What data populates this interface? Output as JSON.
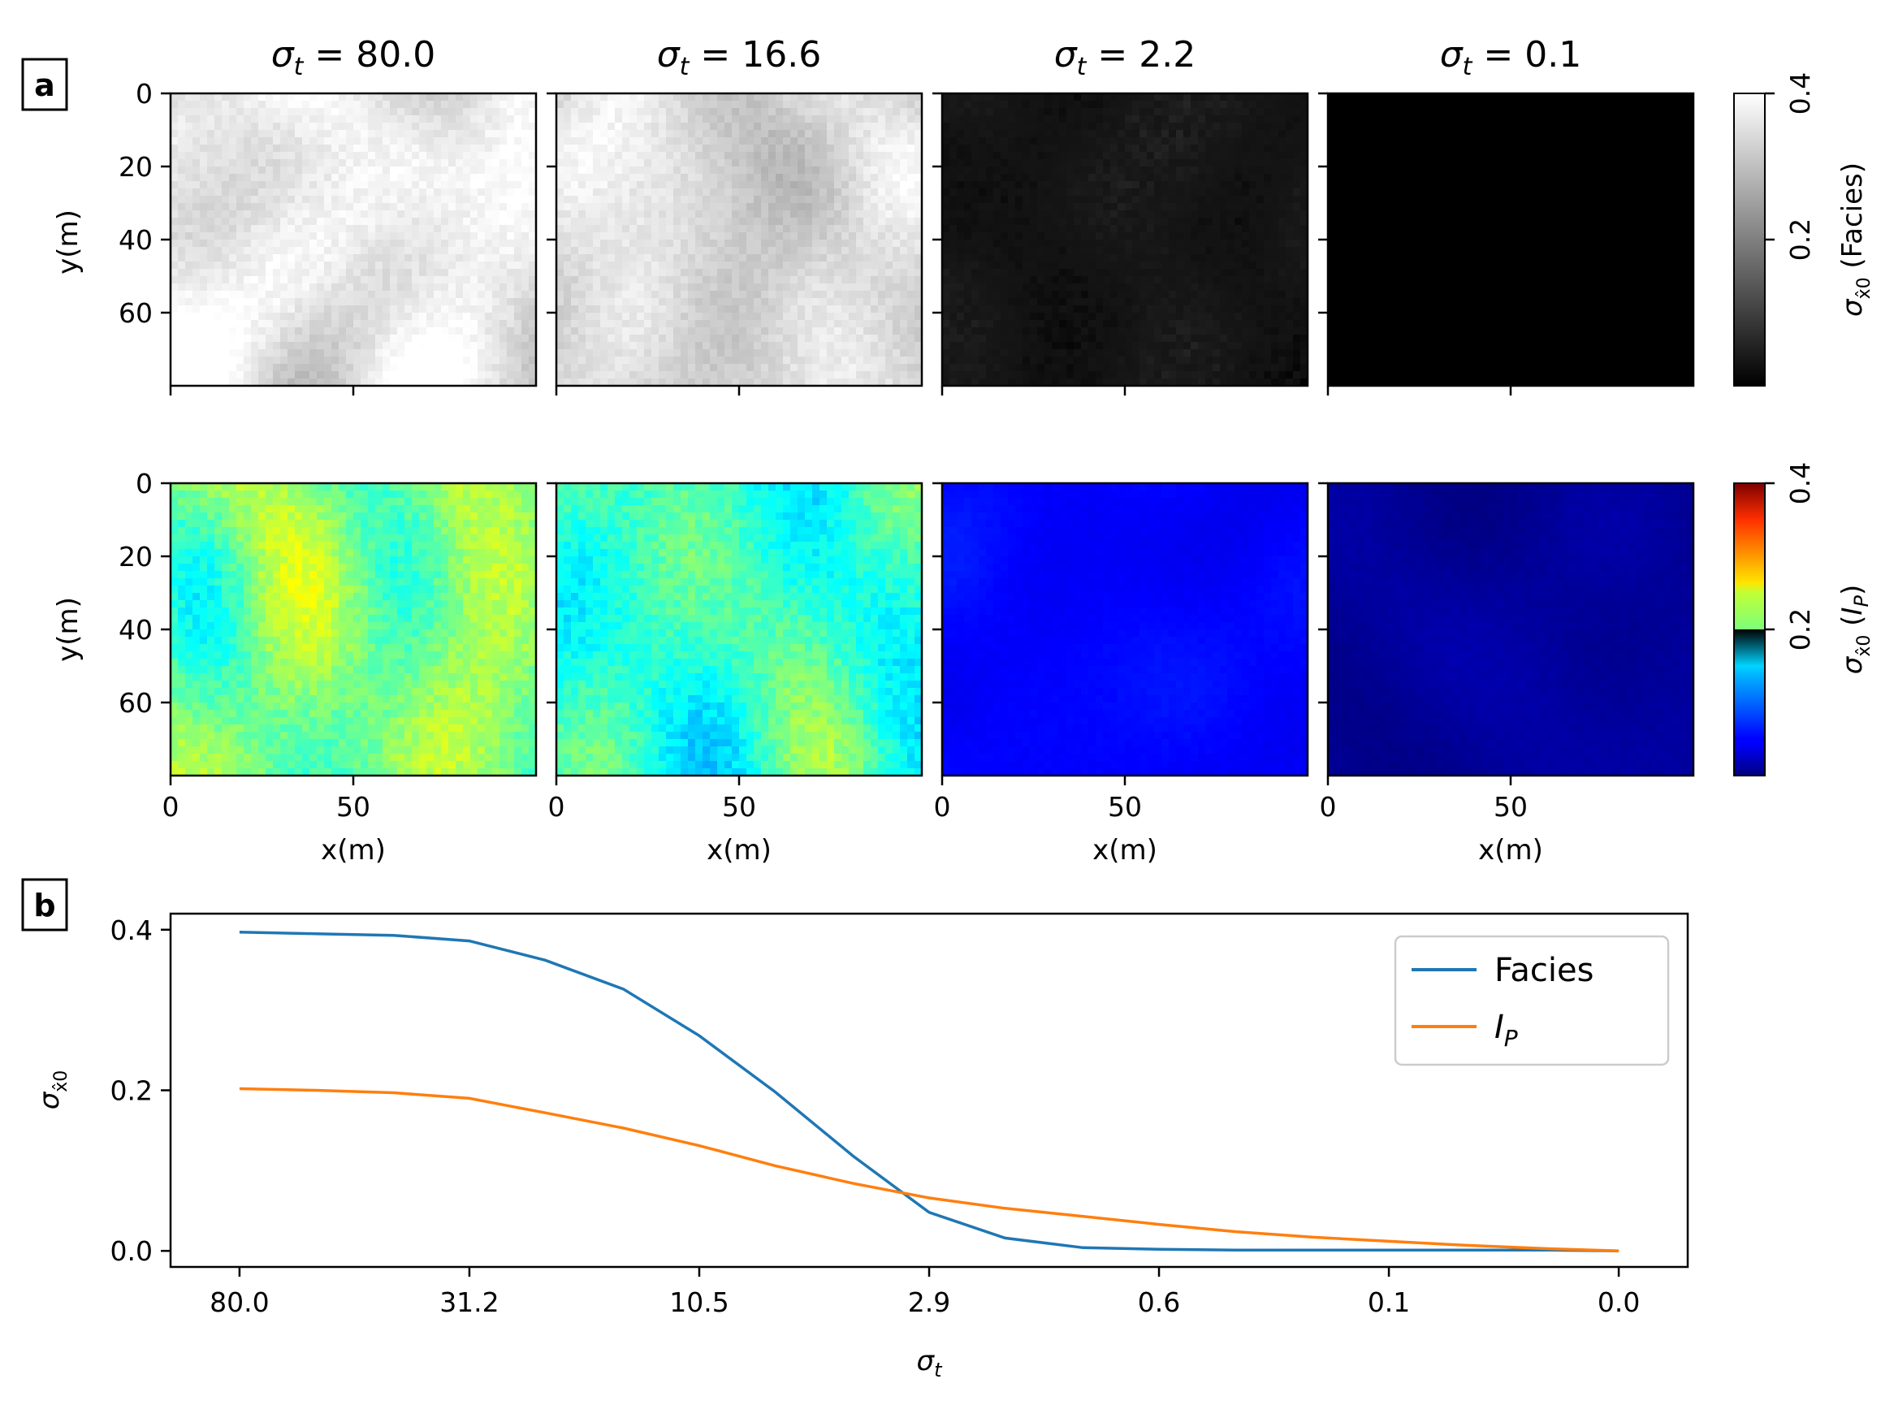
{
  "panel_labels": [
    "a",
    "b"
  ],
  "chart_data": [
    {
      "type": "heatmap",
      "name": "facies-std-maps",
      "panel": "a",
      "row": 1,
      "columns": [
        "80.0",
        "16.6",
        "2.2",
        "0.1"
      ],
      "column_title_prefix": "σ_t =",
      "mean_std_per_column": [
        0.37,
        0.34,
        0.04,
        0.0
      ],
      "ylabel": "y(m)",
      "yticks": [
        0,
        20,
        40,
        60
      ],
      "xticks": [
        0,
        50
      ],
      "xlim": [
        0,
        100
      ],
      "ylim": [
        80,
        0
      ],
      "colormap": "gray",
      "colorbar": {
        "label": "σ_x̂0 (Facies)",
        "ticks": [
          0.2,
          0.4
        ],
        "range": [
          0.0,
          0.4
        ]
      }
    },
    {
      "type": "heatmap",
      "name": "ip-std-maps",
      "panel": "a",
      "row": 2,
      "columns": [
        "80.0",
        "16.6",
        "2.2",
        "0.1"
      ],
      "mean_std_per_column": [
        0.2,
        0.17,
        0.05,
        0.01
      ],
      "xlabel": "x(m)",
      "ylabel": "y(m)",
      "yticks": [
        0,
        20,
        40,
        60
      ],
      "xticks": [
        0,
        50
      ],
      "xlim": [
        0,
        100
      ],
      "ylim": [
        80,
        0
      ],
      "colormap": "jet",
      "colorbar": {
        "label": "σ_x̂0 (I_P)",
        "ticks": [
          0.2,
          0.4
        ],
        "range": [
          0.0,
          0.4
        ]
      }
    },
    {
      "type": "line",
      "name": "std-vs-sigma",
      "panel": "b",
      "x_tick_labels": [
        "80.0",
        "31.2",
        "10.5",
        "2.9",
        "0.6",
        "0.1",
        "0.0"
      ],
      "xlabel": "σ_t",
      "ylabel": "σ_x̂0",
      "yticks": [
        0.0,
        0.2,
        0.4
      ],
      "ylim": [
        -0.02,
        0.42
      ],
      "xlim": [
        -0.3,
        6.3
      ],
      "legend_position": "top-right",
      "series": [
        {
          "name": "Facies",
          "color": "#1f77b4",
          "x": [
            0,
            0.33,
            0.67,
            1.0,
            1.33,
            1.67,
            2.0,
            2.33,
            2.67,
            3.0,
            3.33,
            3.67,
            4.0,
            4.33,
            4.67,
            5.0,
            5.33,
            5.67,
            6.0
          ],
          "y": [
            0.397,
            0.395,
            0.393,
            0.386,
            0.362,
            0.326,
            0.268,
            0.198,
            0.118,
            0.048,
            0.016,
            0.004,
            0.002,
            0.001,
            0.001,
            0.001,
            0.001,
            0.001,
            0.0
          ]
        },
        {
          "name": "I_P",
          "color": "#ff7f0e",
          "x": [
            0,
            0.33,
            0.67,
            1.0,
            1.33,
            1.67,
            2.0,
            2.33,
            2.67,
            3.0,
            3.33,
            3.67,
            4.0,
            4.33,
            4.67,
            5.0,
            5.33,
            5.67,
            6.0
          ],
          "y": [
            0.202,
            0.2,
            0.197,
            0.19,
            0.172,
            0.153,
            0.131,
            0.106,
            0.084,
            0.066,
            0.053,
            0.043,
            0.033,
            0.024,
            0.017,
            0.012,
            0.007,
            0.003,
            0.0
          ]
        }
      ]
    }
  ],
  "legend": {
    "facies_label": "Facies",
    "ip_label_base": "I",
    "ip_label_sub": "P"
  }
}
